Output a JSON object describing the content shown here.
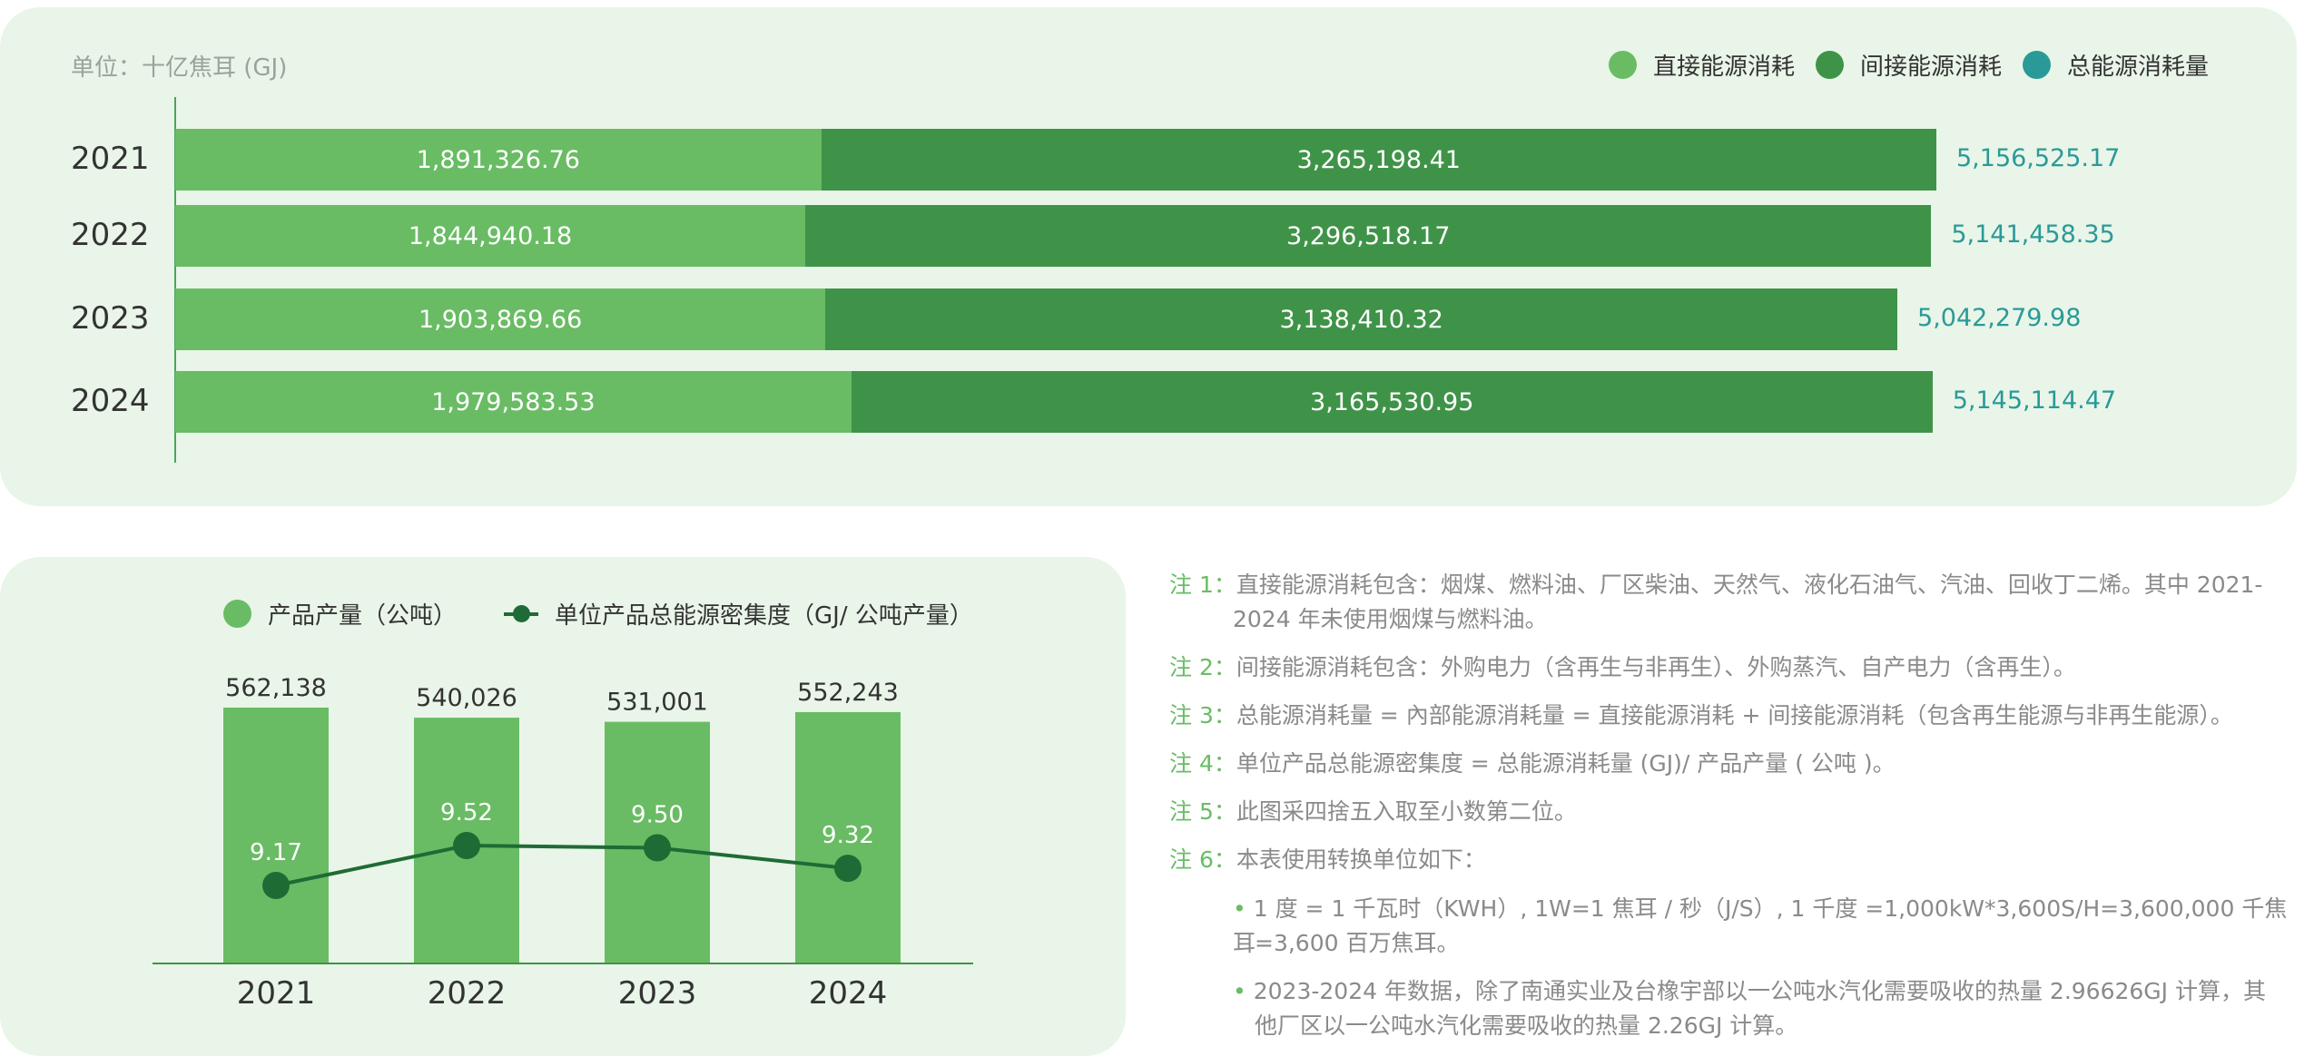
{
  "top": {
    "unit_label": "单位：十亿焦耳 (GJ)",
    "legend": [
      {
        "label": "直接能源消耗",
        "color": "#69bc64"
      },
      {
        "label": "间接能源消耗",
        "color": "#3f9348"
      },
      {
        "label": "总能源消耗量",
        "color": "#2a9a98"
      }
    ]
  },
  "bottom": {
    "legend": [
      {
        "label": "产品产量（公吨）",
        "color": "#69bc64"
      },
      {
        "label": "单位产品总能源密集度（GJ/ 公吨产量）",
        "color": "#1f6b35"
      }
    ]
  },
  "chart_data": [
    {
      "type": "bar",
      "orientation": "horizontal",
      "stacked": true,
      "categories": [
        "2021",
        "2022",
        "2023",
        "2024"
      ],
      "series": [
        {
          "name": "直接能源消耗",
          "values": [
            1891326.76,
            1844940.18,
            1903869.66,
            1979583.53
          ],
          "labels": [
            "1,891,326.76",
            "1,844,940.18",
            "1,903,869.66",
            "1,979,583.53"
          ]
        },
        {
          "name": "间接能源消耗",
          "values": [
            3265198.41,
            3296518.17,
            3138410.32,
            3165530.95
          ],
          "labels": [
            "3,265,198.41",
            "3,296,518.17",
            "3,138,410.32",
            "3,165,530.95"
          ]
        },
        {
          "name": "总能源消耗量",
          "values": [
            5156525.17,
            5141458.35,
            5042279.98,
            5145114.47
          ],
          "labels": [
            "5,156,525.17",
            "5,141,458.35",
            "5,042,279.98",
            "5,145,114.47"
          ]
        }
      ]
    },
    {
      "type": "bar",
      "overlay": "line",
      "categories": [
        "2021",
        "2022",
        "2023",
        "2024"
      ],
      "series": [
        {
          "name": "产品产量（公吨）",
          "kind": "bar",
          "values": [
            562138,
            540026,
            531001,
            552243
          ],
          "labels": [
            "562,138",
            "540,026",
            "531,001",
            "552,243"
          ]
        },
        {
          "name": "单位产品总能源密集度（GJ/ 公吨产量）",
          "kind": "line",
          "values": [
            9.17,
            9.52,
            9.5,
            9.32
          ],
          "labels": [
            "9.17",
            "9.52",
            "9.50",
            "9.32"
          ]
        }
      ]
    }
  ],
  "notes": [
    {
      "key": "注 1：",
      "text": "直接能源消耗包含：烟煤、燃料油、厂区柴油、天然气、液化石油气、汽油、回收丁二烯。其中 2021-",
      "text2": "2024 年未使用烟煤与燃料油。"
    },
    {
      "key": "注 2：",
      "text": "间接能源消耗包含：外购电力（含再生与非再生）、外购蒸汽、自产电力（含再生）。"
    },
    {
      "key": "注 3：",
      "text": "总能源消耗量 = 內部能源消耗量 = 直接能源消耗 + 间接能源消耗（包含再生能源与非再生能源）。"
    },
    {
      "key": "注 4：",
      "text": "单位产品总能源密集度 = 总能源消耗量 (GJ)/ 产品产量 ( 公吨 )。"
    },
    {
      "key": "注 5：",
      "text": "此图采四捨五入取至小数第二位。"
    },
    {
      "key": "注 6：",
      "text": "本表使用转换单位如下："
    }
  ],
  "bullets": [
    {
      "line1": "1 度 = 1 千瓦时（KWH）, 1W=1 焦耳 / 秒（J/S）, 1 千度 =1,000kW*3,600S/H=3,600,000 千焦耳",
      "line2": "=3,600 百万焦耳。"
    },
    {
      "line1": "2023-2024 年数据，除了南通实业及台橡宇部以一公吨水汽化需要吸收的热量 2.96626GJ 计算，其",
      "line2": "他厂区以一公吨水汽化需要吸收的热量 2.26GJ 计算。"
    }
  ]
}
